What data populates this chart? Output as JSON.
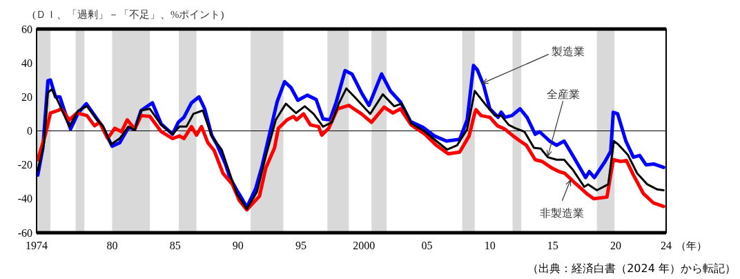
{
  "chart_data": {
    "type": "line",
    "title": "(ＤＩ、「過剰」－「不足」、%ポイント)",
    "xlabel": "（年）",
    "xlim": [
      1974,
      2024
    ],
    "xticks": [
      {
        "value": 1974,
        "label": "1974"
      },
      {
        "value": 1980,
        "label": "80"
      },
      {
        "value": 1985,
        "label": "85"
      },
      {
        "value": 1990,
        "label": "90"
      },
      {
        "value": 1995,
        "label": "95"
      },
      {
        "value": 2000,
        "label": "2000"
      },
      {
        "value": 2005,
        "label": "05"
      },
      {
        "value": 2010,
        "label": "10"
      },
      {
        "value": 2015,
        "label": "15"
      },
      {
        "value": 2020,
        "label": "20"
      },
      {
        "value": 2024,
        "label": "24"
      }
    ],
    "ylim": [
      -60,
      60
    ],
    "yticks": [
      -60,
      -40,
      -20,
      0,
      20,
      40,
      60
    ],
    "grid": false,
    "line_style": "solid",
    "series": [
      {
        "color": "#0000ff",
        "x": [
          1974.1,
          1974.5,
          1974.9,
          1975.1,
          1975.5,
          1975.85,
          1976.7,
          1977.3,
          1977.95,
          1978.8,
          1979.2,
          1980.0,
          1980.6,
          1981.3,
          1981.8,
          1982.3,
          1983.2,
          1983.9,
          1984.8,
          1985.25,
          1985.7,
          1986.3,
          1986.9,
          1987.35,
          1987.9,
          1988.35,
          1989.0,
          1989.35,
          1989.9,
          1990.2,
          1990.7,
          1991.4,
          1991.9,
          1992.5,
          1993.1,
          1993.7,
          1994.2,
          1994.75,
          1995.5,
          1996.2,
          1996.75,
          1997.3,
          1997.8,
          1998.5,
          1999.05,
          1999.8,
          2000.4,
          2001.4,
          2002.1,
          2002.9,
          2003.7,
          2004.7,
          2005.6,
          2006.55,
          2007.6,
          2008.2,
          2008.7,
          2009.0,
          2009.5,
          2010.0,
          2010.65,
          2010.9,
          2011.2,
          2011.75,
          2012.4,
          2012.95,
          2013.6,
          2013.95,
          2014.75,
          2015.3,
          2015.9,
          2016.7,
          2017.6,
          2017.9,
          2018.3,
          2019.15,
          2019.6,
          2019.8,
          2020.15,
          2020.8,
          2021.4,
          2021.9,
          2022.4,
          2023.0,
          2023.8
        ],
        "values": [
          -26,
          -10,
          29.5,
          30,
          20,
          20,
          1,
          10.5,
          16,
          7,
          3,
          -9,
          -7,
          2,
          1,
          12,
          16.5,
          4,
          -2,
          5,
          8,
          16.5,
          20,
          13,
          -2.5,
          -8.5,
          -19.5,
          -27.5,
          -35,
          -38.5,
          -45,
          -34,
          -21,
          -2,
          17,
          29,
          25.5,
          18,
          21,
          18.5,
          7,
          6.5,
          17,
          35.5,
          33.5,
          22.5,
          15,
          33.5,
          23.5,
          17,
          5.5,
          2,
          -3,
          -6,
          -5,
          6.5,
          38.5,
          36,
          27,
          13,
          8,
          11,
          8,
          9,
          13,
          8,
          -2,
          -0.5,
          -6,
          -8.5,
          -6,
          -16,
          -27.5,
          -24,
          -27.5,
          -18,
          -12,
          11,
          10,
          -6,
          -15.5,
          -14.5,
          -20,
          -19.5,
          -21.5
        ]
      },
      {
        "color": "#ff0000",
        "x": [
          1974.1,
          1974.7,
          1975.1,
          1975.7,
          1975.95,
          1976.6,
          1977.2,
          1978.0,
          1978.6,
          1979.0,
          1979.65,
          1980.2,
          1980.75,
          1981.2,
          1981.8,
          1982.3,
          1983.0,
          1983.9,
          1984.8,
          1985.35,
          1985.7,
          1986.3,
          1986.7,
          1987.1,
          1987.6,
          1988.1,
          1988.8,
          1989.55,
          1990.1,
          1990.7,
          1991.7,
          1992.2,
          1992.9,
          1993.2,
          1993.9,
          1994.4,
          1994.65,
          1995.2,
          1995.75,
          1996.4,
          1996.65,
          1997.2,
          1997.9,
          1998.8,
          1999.8,
          2000.6,
          2001.6,
          2002.3,
          2002.9,
          2003.75,
          2004.85,
          2005.75,
          2006.7,
          2007.6,
          2008.35,
          2008.8,
          2008.9,
          2009.3,
          2010.0,
          2010.6,
          2011.2,
          2011.85,
          2012.4,
          2012.9,
          2013.6,
          2014.15,
          2014.95,
          2015.5,
          2015.95,
          2016.8,
          2017.7,
          2018.25,
          2019.3,
          2019.8,
          2020.4,
          2020.85,
          2021.4,
          2022.2,
          2023.0,
          2023.8
        ],
        "values": [
          -17,
          -2,
          10.5,
          12,
          13,
          6.5,
          10.5,
          9,
          3,
          5,
          -4.5,
          1.5,
          -0.5,
          6.5,
          1,
          9,
          8.5,
          -0.5,
          -4.5,
          -3,
          -4.5,
          2.5,
          -2.5,
          2.5,
          -7,
          -11.5,
          -25,
          -31.5,
          -41,
          -46.5,
          -38.5,
          -22,
          -10,
          1.5,
          6.5,
          8.5,
          6.5,
          10,
          3.5,
          2.5,
          -2.5,
          1.5,
          13,
          15,
          10,
          5,
          14,
          10.5,
          13,
          3.5,
          -2,
          -8.5,
          -13.5,
          -12.5,
          -3,
          10.5,
          12.5,
          9,
          8,
          3,
          1,
          -3,
          -6,
          -8.5,
          -17,
          -18,
          -22,
          -24,
          -25,
          -31,
          -37,
          -40,
          -39,
          -17,
          -18,
          -17.5,
          -26,
          -37,
          -42.5,
          -44.5
        ]
      },
      {
        "color": "#000000",
        "x": [
          1974.1,
          1974.6,
          1974.9,
          1975.2,
          1975.7,
          1976.6,
          1977.3,
          1978.0,
          1978.8,
          1979.3,
          1979.9,
          1980.6,
          1981.3,
          1981.8,
          1982.3,
          1983.0,
          1983.9,
          1984.8,
          1985.35,
          1985.9,
          1986.45,
          1987.2,
          1987.9,
          1988.7,
          1989.2,
          1989.9,
          1990.7,
          1991.5,
          1992.2,
          1993.0,
          1993.8,
          1994.6,
          1995.3,
          1996.0,
          1996.75,
          1997.45,
          1998.0,
          1998.6,
          1999.25,
          2000.5,
          2001.5,
          2002.4,
          2003.0,
          2003.75,
          2004.85,
          2005.75,
          2006.6,
          2007.4,
          2008.2,
          2008.8,
          2009.6,
          2010.4,
          2010.9,
          2011.5,
          2012.05,
          2012.75,
          2013.5,
          2014.05,
          2014.6,
          2015.3,
          2015.9,
          2016.6,
          2017.5,
          2017.8,
          2018.5,
          2019.4,
          2019.85,
          2020.2,
          2020.95,
          2021.7,
          2022.5,
          2023.3,
          2023.8
        ],
        "values": [
          -23.5,
          -7,
          22.5,
          24.5,
          17.5,
          2.5,
          12,
          14.5,
          6.5,
          2.5,
          -8,
          -4.5,
          2.5,
          0.5,
          12,
          13,
          3.5,
          -2,
          2.5,
          2.5,
          10,
          12,
          -3,
          -11,
          -22,
          -37,
          -46,
          -36,
          -15,
          6.5,
          16,
          10.5,
          14.5,
          10,
          2.5,
          5,
          16,
          25,
          20,
          10,
          21.5,
          14.5,
          16,
          4.5,
          -0.5,
          -6,
          -11,
          -8.5,
          1,
          23.5,
          16,
          9,
          9,
          3.5,
          1.5,
          -0.5,
          -10,
          -10.5,
          -15.5,
          -17,
          -17,
          -23,
          -33,
          -31.5,
          -35,
          -31.5,
          -6,
          -8,
          -14,
          -25,
          -31.5,
          -34.5,
          -35
        ]
      }
    ],
    "ref_lines": [
      {
        "axis": "y",
        "value": 0,
        "color": "#000000"
      }
    ],
    "bands": [
      {
        "axis": "x",
        "from": 1974,
        "to": 1975.1,
        "color": "#d9d9d9"
      },
      {
        "axis": "x",
        "from": 1977.1,
        "to": 1977.8,
        "color": "#d9d9d9"
      },
      {
        "axis": "x",
        "from": 1980,
        "to": 1983,
        "color": "#d9d9d9"
      },
      {
        "axis": "x",
        "from": 1985.3,
        "to": 1986.7,
        "color": "#d9d9d9"
      },
      {
        "axis": "x",
        "from": 1991,
        "to": 1993.6,
        "color": "#d9d9d9"
      },
      {
        "axis": "x",
        "from": 1997.1,
        "to": 1998.8,
        "color": "#d9d9d9"
      },
      {
        "axis": "x",
        "from": 2000.6,
        "to": 2001.8,
        "color": "#d9d9d9"
      },
      {
        "axis": "x",
        "from": 2007.8,
        "to": 2008.8,
        "color": "#d9d9d9"
      },
      {
        "axis": "x",
        "from": 2011.8,
        "to": 2012.5,
        "color": "#d9d9d9"
      },
      {
        "axis": "x",
        "from": 2018.5,
        "to": 2019.9,
        "color": "#d9d9d9"
      }
    ],
    "annotations": [
      {
        "text": "製造業",
        "x": 2009.4,
        "y": 28
      },
      {
        "text": "全産業",
        "x": 2014.6,
        "y": -15
      },
      {
        "text": "非製造業",
        "x": 2016.4,
        "y": -29
      },
      "（出典：経済白書（2024 年）から転記）"
    ]
  }
}
